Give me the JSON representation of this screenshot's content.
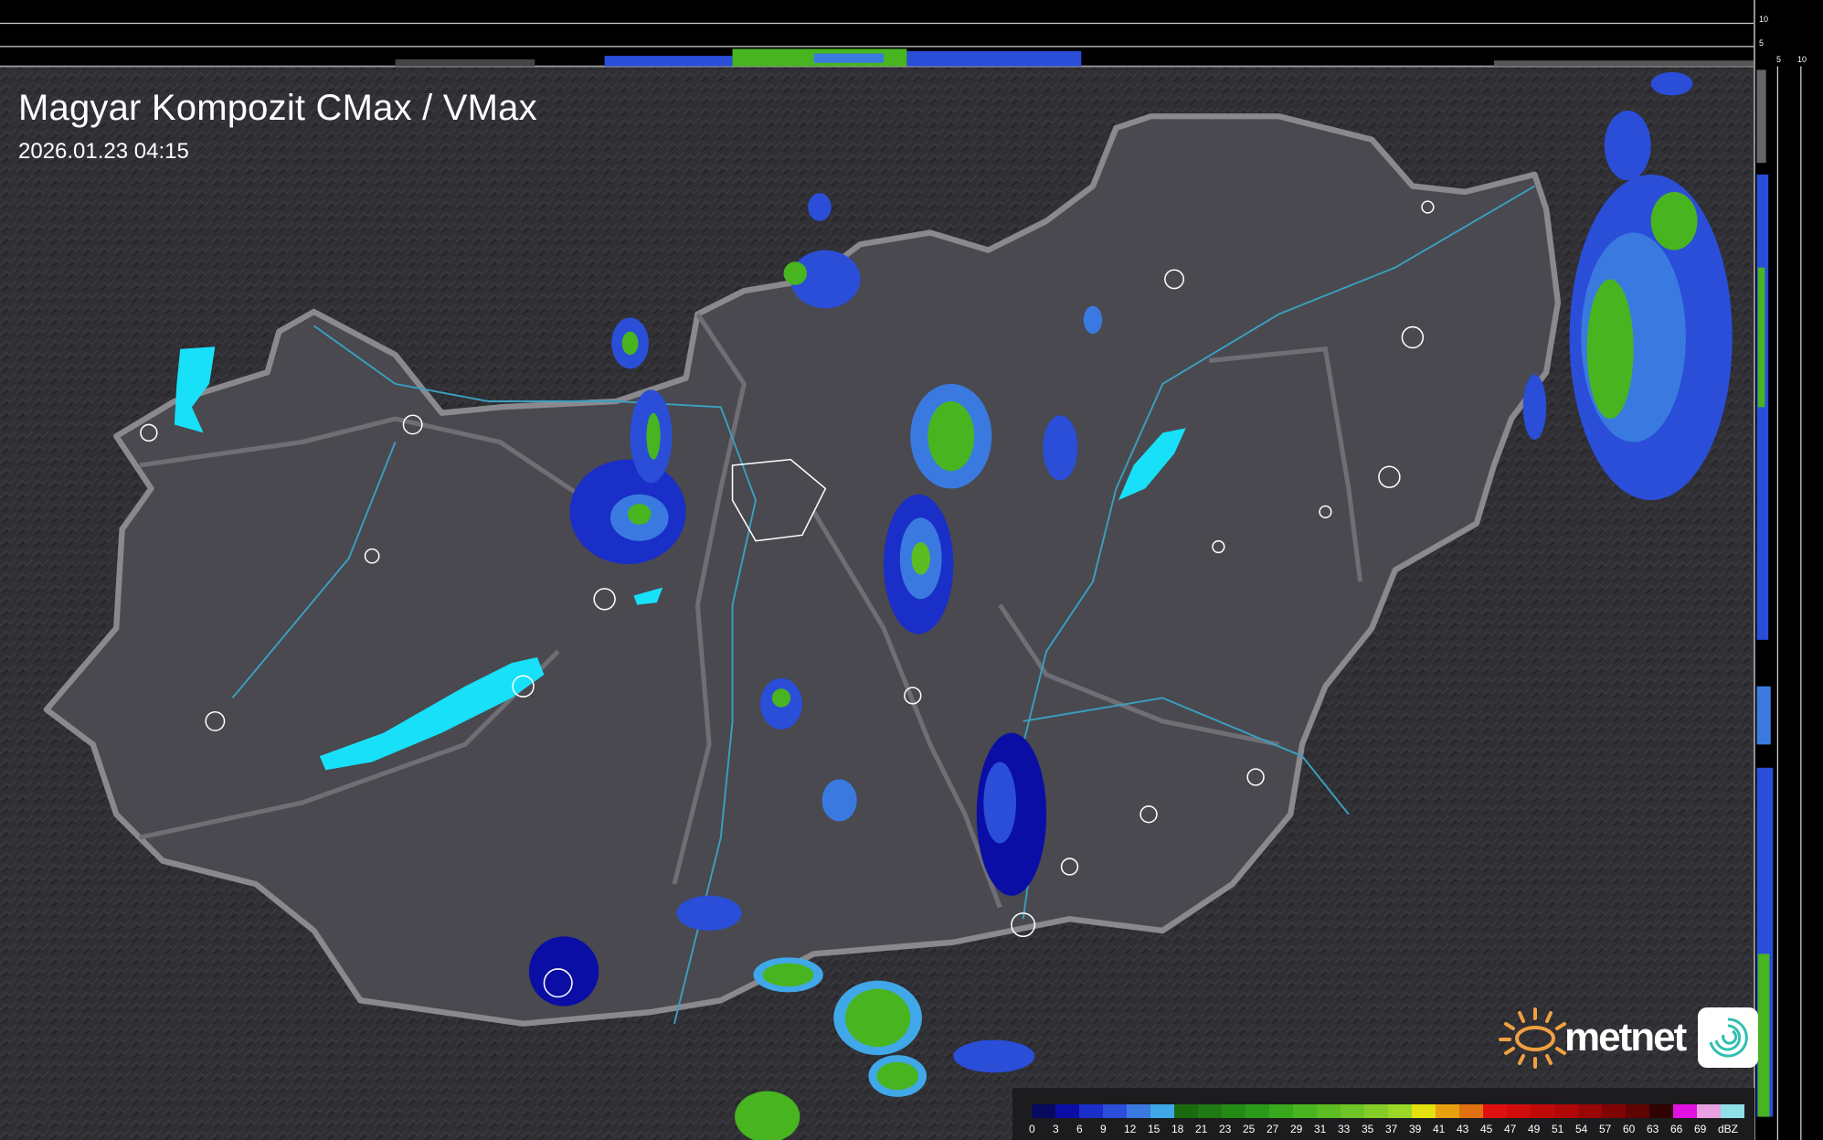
{
  "header": {
    "title": "Magyar Kompozit CMax / VMax",
    "timestamp": "2026.01.23 04:15"
  },
  "profile_axes": {
    "right_labels": [
      "10",
      "5"
    ],
    "bottom_labels": [
      "5",
      "10"
    ]
  },
  "legend": {
    "unit": "dBZ",
    "labels": [
      "0",
      "3",
      "6",
      "9",
      "12",
      "15",
      "18",
      "21",
      "23",
      "25",
      "27",
      "29",
      "31",
      "33",
      "35",
      "37",
      "39",
      "41",
      "43",
      "45",
      "47",
      "49",
      "51",
      "54",
      "57",
      "60",
      "63",
      "66",
      "69"
    ],
    "colors": [
      "#060a5e",
      "#0a0ea4",
      "#1a2ec8",
      "#2a4ed8",
      "#3a7ae0",
      "#40a8e8",
      "#1a6a10",
      "#1e7a12",
      "#248a16",
      "#2a9a1a",
      "#38a81c",
      "#48b420",
      "#5cbc22",
      "#6ec424",
      "#84cc26",
      "#9ad828",
      "#e4e010",
      "#e8a010",
      "#e07010",
      "#e01010",
      "#d00c0c",
      "#c00a0a",
      "#b00808",
      "#980606",
      "#800404",
      "#600303",
      "#300202",
      "#e010e0",
      "#e8a0e0",
      "#90e0e8"
    ]
  },
  "map": {
    "background": "#2e2e33",
    "country_fill": "#4a4a50",
    "border_color": "#8a8a8e",
    "river_color": "#3aa0c0",
    "lake_color": "#18e0f8"
  },
  "branding": {
    "logo_text": "metnet",
    "sun_color": "#f0a040",
    "icon_color": "#30c0b0"
  }
}
